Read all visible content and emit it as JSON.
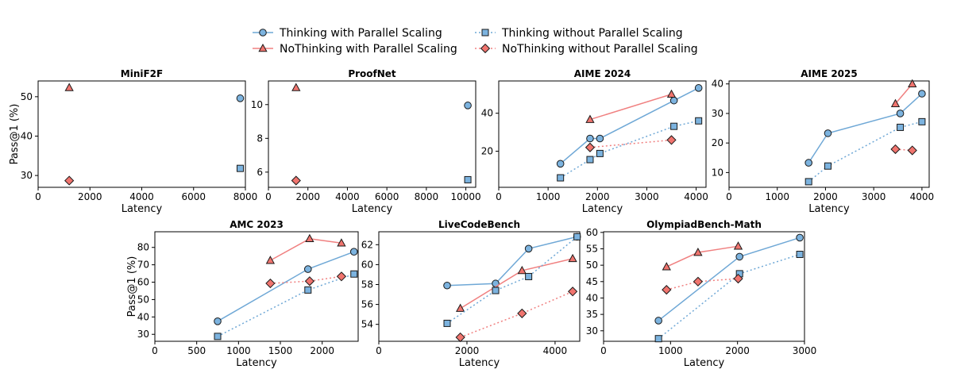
{
  "colors": {
    "blue_line": "#6fa8d6",
    "blue_fill": "#7cb3df",
    "red_line": "#f08080",
    "red_fill": "#f0746e",
    "edge": "#1a1a1a"
  },
  "legend": [
    {
      "label": "Thinking with Parallel Scaling",
      "marker": "circle",
      "color": "blue",
      "dash": "solid"
    },
    {
      "label": "NoThinking with Parallel Scaling",
      "marker": "triangle",
      "color": "red",
      "dash": "solid"
    },
    {
      "label": "Thinking without Parallel Scaling",
      "marker": "square",
      "color": "blue",
      "dash": "dotted"
    },
    {
      "label": "NoThinking without Parallel Scaling",
      "marker": "diamond",
      "color": "red",
      "dash": "dotted"
    }
  ],
  "chart_data": [
    {
      "type": "scatter",
      "title": "MiniF2F",
      "xlabel": "Latency",
      "ylabel": "Pass@1 (%)",
      "xlim": [
        0,
        8000
      ],
      "ylim": [
        27,
        54
      ],
      "xticks": [
        0,
        2000,
        4000,
        6000,
        8000
      ],
      "yticks": [
        30,
        40,
        50
      ],
      "series": [
        {
          "name": "Thinking with Parallel Scaling",
          "x": [
            7800
          ],
          "y": [
            49.6
          ]
        },
        {
          "name": "NoThinking with Parallel Scaling",
          "x": [
            1200
          ],
          "y": [
            52.3
          ]
        },
        {
          "name": "Thinking without Parallel Scaling",
          "x": [
            7800
          ],
          "y": [
            31.8
          ]
        },
        {
          "name": "NoThinking without Parallel Scaling",
          "x": [
            1200
          ],
          "y": [
            28.7
          ]
        }
      ]
    },
    {
      "type": "scatter",
      "title": "ProofNet",
      "xlabel": "Latency",
      "ylabel": "",
      "xlim": [
        0,
        10500
      ],
      "ylim": [
        5.1,
        11.4
      ],
      "xticks": [
        0,
        2000,
        4000,
        6000,
        8000,
        10000
      ],
      "yticks": [
        6,
        8,
        10
      ],
      "series": [
        {
          "name": "Thinking with Parallel Scaling",
          "x": [
            10100
          ],
          "y": [
            9.95
          ]
        },
        {
          "name": "NoThinking with Parallel Scaling",
          "x": [
            1400
          ],
          "y": [
            11.0
          ]
        },
        {
          "name": "Thinking without Parallel Scaling",
          "x": [
            10100
          ],
          "y": [
            5.55
          ]
        },
        {
          "name": "NoThinking without Parallel Scaling",
          "x": [
            1400
          ],
          "y": [
            5.5
          ]
        }
      ]
    },
    {
      "type": "line",
      "title": "AIME 2024",
      "xlabel": "Latency",
      "ylabel": "",
      "xlim": [
        0,
        4200
      ],
      "ylim": [
        1,
        57
      ],
      "xticks": [
        0,
        1000,
        2000,
        3000,
        4000
      ],
      "yticks": [
        20,
        40
      ],
      "series": [
        {
          "name": "Thinking with Parallel Scaling",
          "x": [
            1250,
            1850,
            2050,
            3550,
            4050
          ],
          "y": [
            13.4,
            26.7,
            26.7,
            46.7,
            53.3
          ]
        },
        {
          "name": "NoThinking with Parallel Scaling",
          "x": [
            1850,
            3500
          ],
          "y": [
            36.7,
            50.0
          ]
        },
        {
          "name": "Thinking without Parallel Scaling",
          "x": [
            1250,
            1850,
            2050,
            3550,
            4050
          ],
          "y": [
            6.0,
            15.6,
            18.8,
            33.1,
            36.0
          ]
        },
        {
          "name": "NoThinking without Parallel Scaling",
          "x": [
            1850,
            3500
          ],
          "y": [
            22.0,
            25.9
          ]
        }
      ]
    },
    {
      "type": "line",
      "title": "AIME 2025",
      "xlabel": "Latency",
      "ylabel": "",
      "xlim": [
        0,
        4150
      ],
      "ylim": [
        5,
        41
      ],
      "xticks": [
        0,
        1000,
        2000,
        3000,
        4000
      ],
      "yticks": [
        10,
        20,
        30,
        40
      ],
      "series": [
        {
          "name": "Thinking with Parallel Scaling",
          "x": [
            1650,
            2050,
            3550,
            4000
          ],
          "y": [
            13.3,
            23.3,
            30.0,
            36.7
          ]
        },
        {
          "name": "NoThinking with Parallel Scaling",
          "x": [
            3450,
            3800
          ],
          "y": [
            33.3,
            40.0
          ]
        },
        {
          "name": "Thinking without Parallel Scaling",
          "x": [
            1650,
            2050,
            3550,
            4000
          ],
          "y": [
            6.9,
            12.2,
            25.3,
            27.2
          ]
        },
        {
          "name": "NoThinking without Parallel Scaling",
          "x": [
            3450,
            3800
          ],
          "y": [
            17.9,
            17.5
          ]
        }
      ]
    },
    {
      "type": "line",
      "title": "AMC 2023",
      "xlabel": "Latency",
      "ylabel": "Pass@1 (%)",
      "xlim": [
        0,
        2430
      ],
      "ylim": [
        26,
        89
      ],
      "xticks": [
        0,
        500,
        1000,
        1500,
        2000
      ],
      "yticks": [
        30,
        40,
        50,
        60,
        70,
        80
      ],
      "series": [
        {
          "name": "Thinking with Parallel Scaling",
          "x": [
            750,
            1830,
            2380
          ],
          "y": [
            37.5,
            67.5,
            77.5
          ]
        },
        {
          "name": "NoThinking with Parallel Scaling",
          "x": [
            1380,
            1850,
            2230
          ],
          "y": [
            72.5,
            85.0,
            82.5
          ]
        },
        {
          "name": "Thinking without Parallel Scaling",
          "x": [
            750,
            1830,
            2380
          ],
          "y": [
            28.8,
            55.5,
            64.7
          ]
        },
        {
          "name": "NoThinking without Parallel Scaling",
          "x": [
            1380,
            1850,
            2230
          ],
          "y": [
            59.3,
            60.6,
            63.3
          ]
        }
      ]
    },
    {
      "type": "line",
      "title": "LiveCodeBench",
      "xlabel": "Latency",
      "ylabel": "",
      "xlim": [
        0,
        4560
      ],
      "ylim": [
        52.3,
        63.3
      ],
      "xticks": [
        0,
        2000,
        4000
      ],
      "yticks": [
        54,
        56,
        58,
        60,
        62
      ],
      "series": [
        {
          "name": "Thinking with Parallel Scaling",
          "x": [
            1550,
            2650,
            3400,
            4500
          ],
          "y": [
            57.9,
            58.1,
            61.6,
            62.8
          ]
        },
        {
          "name": "NoThinking with Parallel Scaling",
          "x": [
            1850,
            3250,
            4400
          ],
          "y": [
            55.6,
            59.4,
            60.6
          ]
        },
        {
          "name": "Thinking without Parallel Scaling",
          "x": [
            1550,
            2650,
            3400,
            4500
          ],
          "y": [
            54.1,
            57.4,
            58.8,
            62.8
          ]
        },
        {
          "name": "NoThinking without Parallel Scaling",
          "x": [
            1850,
            3250,
            4400
          ],
          "y": [
            52.7,
            55.1,
            57.3
          ]
        }
      ]
    },
    {
      "type": "line",
      "title": "OlympiadBench-Math",
      "xlabel": "Latency",
      "ylabel": "",
      "xlim": [
        0,
        3000
      ],
      "ylim": [
        26.8,
        60.2
      ],
      "xticks": [
        0,
        1000,
        2000,
        3000
      ],
      "yticks": [
        30,
        35,
        40,
        45,
        50,
        55,
        60
      ],
      "series": [
        {
          "name": "Thinking with Parallel Scaling",
          "x": [
            820,
            2030,
            2930
          ],
          "y": [
            33.1,
            52.6,
            58.4
          ]
        },
        {
          "name": "NoThinking with Parallel Scaling",
          "x": [
            940,
            1410,
            2010
          ],
          "y": [
            49.5,
            53.9,
            55.8
          ]
        },
        {
          "name": "Thinking without Parallel Scaling",
          "x": [
            820,
            2030,
            2930
          ],
          "y": [
            27.6,
            47.4,
            53.3
          ]
        },
        {
          "name": "NoThinking without Parallel Scaling",
          "x": [
            940,
            1410,
            2010
          ],
          "y": [
            42.5,
            45.0,
            45.9
          ]
        }
      ]
    }
  ]
}
